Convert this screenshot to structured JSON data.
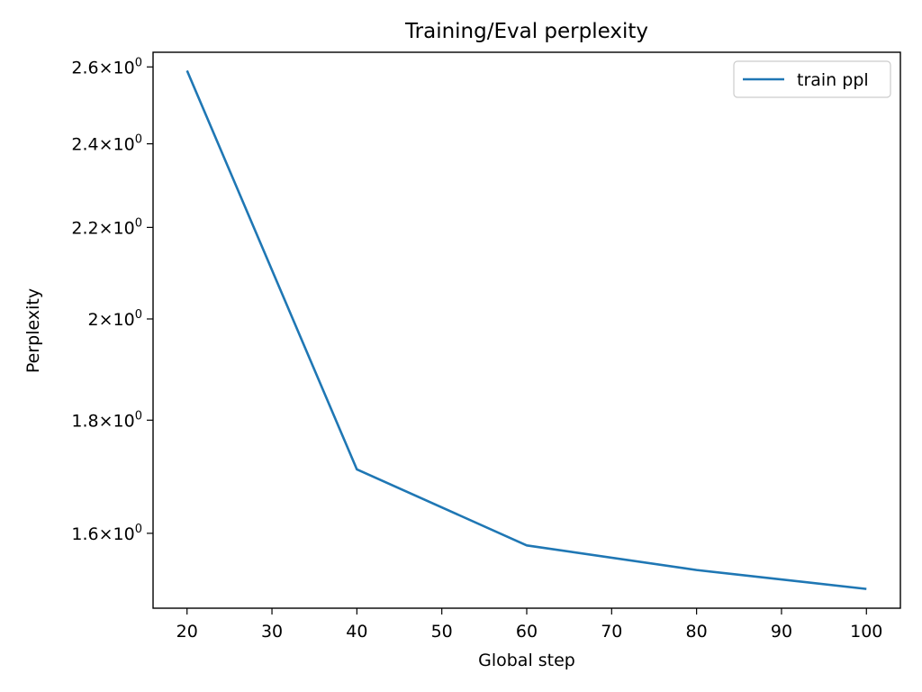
{
  "chart_data": {
    "type": "line",
    "title": "Training/Eval perplexity",
    "xlabel": "Global step",
    "ylabel": "Perplexity",
    "yscale": "log",
    "xlim": [
      16,
      104
    ],
    "ylim": [
      1.48,
      2.64
    ],
    "xticks": [
      20,
      30,
      40,
      50,
      60,
      70,
      80,
      90,
      100
    ],
    "yticks": [
      {
        "value": 1.6,
        "mantissa": "1.6"
      },
      {
        "value": 1.8,
        "mantissa": "1.8"
      },
      {
        "value": 2.0,
        "mantissa": "2"
      },
      {
        "value": 2.2,
        "mantissa": "2.2"
      },
      {
        "value": 2.4,
        "mantissa": "2.4"
      },
      {
        "value": 2.6,
        "mantissa": "2.6"
      }
    ],
    "ytick_suffix": {
      "times": "×",
      "base": "10",
      "exponent": "0"
    },
    "legend_position": "top-right",
    "grid": false,
    "series": [
      {
        "name": "train ppl",
        "color": "#1f77b4",
        "x": [
          20,
          40,
          60,
          80,
          100
        ],
        "y": [
          2.59,
          1.71,
          1.58,
          1.54,
          1.51
        ]
      }
    ]
  }
}
